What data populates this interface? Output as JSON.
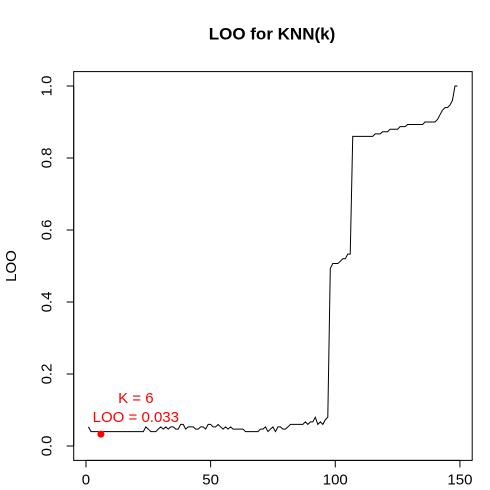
{
  "chart_data": {
    "type": "line",
    "title": "LOO for KNN(k)",
    "y_label": "LOO",
    "x": [
      1,
      2,
      3,
      4,
      5,
      6,
      7,
      8,
      9,
      10,
      11,
      12,
      13,
      14,
      15,
      16,
      17,
      18,
      19,
      20,
      21,
      22,
      23,
      24,
      25,
      26,
      27,
      28,
      29,
      30,
      31,
      32,
      33,
      34,
      35,
      36,
      37,
      38,
      39,
      40,
      41,
      42,
      43,
      44,
      45,
      46,
      47,
      48,
      49,
      50,
      51,
      52,
      53,
      54,
      55,
      56,
      57,
      58,
      59,
      60,
      61,
      62,
      63,
      64,
      65,
      66,
      67,
      68,
      69,
      70,
      71,
      72,
      73,
      74,
      75,
      76,
      77,
      78,
      79,
      80,
      81,
      82,
      83,
      84,
      85,
      86,
      87,
      88,
      89,
      90,
      91,
      92,
      93,
      94,
      95,
      96,
      97,
      98,
      99,
      100,
      101,
      102,
      103,
      104,
      105,
      106,
      107,
      108,
      109,
      110,
      111,
      112,
      113,
      114,
      115,
      116,
      117,
      118,
      119,
      120,
      121,
      122,
      123,
      124,
      125,
      126,
      127,
      128,
      129,
      130,
      131,
      132,
      133,
      134,
      135,
      136,
      137,
      138,
      139,
      140,
      141,
      142,
      143,
      144,
      145,
      146,
      147,
      148,
      149
    ],
    "series": [
      {
        "name": "LOO",
        "color": "#000000",
        "values": [
          0.053,
          0.04,
          0.04,
          0.04,
          0.04,
          0.033,
          0.04,
          0.04,
          0.04,
          0.04,
          0.04,
          0.04,
          0.04,
          0.04,
          0.04,
          0.04,
          0.04,
          0.04,
          0.04,
          0.04,
          0.04,
          0.04,
          0.04,
          0.053,
          0.047,
          0.04,
          0.04,
          0.04,
          0.047,
          0.053,
          0.047,
          0.053,
          0.047,
          0.053,
          0.053,
          0.047,
          0.047,
          0.06,
          0.06,
          0.047,
          0.053,
          0.053,
          0.053,
          0.047,
          0.047,
          0.053,
          0.053,
          0.047,
          0.06,
          0.06,
          0.053,
          0.053,
          0.06,
          0.053,
          0.047,
          0.053,
          0.047,
          0.053,
          0.047,
          0.047,
          0.047,
          0.047,
          0.047,
          0.04,
          0.04,
          0.04,
          0.04,
          0.04,
          0.04,
          0.047,
          0.047,
          0.053,
          0.04,
          0.047,
          0.053,
          0.04,
          0.053,
          0.053,
          0.047,
          0.047,
          0.053,
          0.06,
          0.06,
          0.06,
          0.06,
          0.06,
          0.06,
          0.067,
          0.06,
          0.067,
          0.067,
          0.08,
          0.06,
          0.067,
          0.06,
          0.073,
          0.08,
          0.493,
          0.507,
          0.507,
          0.507,
          0.513,
          0.52,
          0.52,
          0.533,
          0.533,
          0.86,
          0.86,
          0.86,
          0.86,
          0.86,
          0.86,
          0.86,
          0.86,
          0.86,
          0.867,
          0.867,
          0.867,
          0.873,
          0.873,
          0.873,
          0.88,
          0.88,
          0.88,
          0.88,
          0.887,
          0.887,
          0.887,
          0.893,
          0.893,
          0.893,
          0.893,
          0.893,
          0.893,
          0.893,
          0.9,
          0.9,
          0.9,
          0.9,
          0.9,
          0.907,
          0.92,
          0.933,
          0.94,
          0.94,
          0.947,
          0.96,
          1.0,
          1.0
        ]
      }
    ],
    "highlight": {
      "x": 6,
      "y": 0.033,
      "color": "#ff0000"
    },
    "annotations": [
      {
        "text": "K = 6",
        "x": 20,
        "y": 0.13,
        "color": "#ff0000"
      },
      {
        "text": "LOO = 0.033",
        "x": 20,
        "y": 0.078,
        "color": "#ff0000"
      }
    ],
    "xlim": [
      -4.92,
      154.92
    ],
    "ylim": [
      -0.04,
      1.04
    ],
    "xticks": [
      0,
      50,
      100,
      150
    ],
    "yticks": [
      {
        "value": 0,
        "label": "0.0"
      },
      0.2,
      0.4,
      0.6,
      0.8,
      {
        "value": 1,
        "label": "1.0"
      }
    ]
  }
}
